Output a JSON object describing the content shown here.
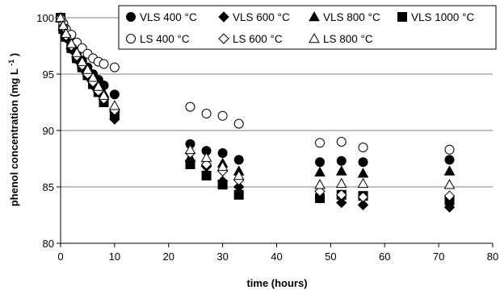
{
  "chart_data": {
    "type": "scatter",
    "title": "",
    "xlabel": "time (hours)",
    "ylabel": "phenol concentration (mg L",
    "ylabel_sup": "-1",
    "ylabel_close": ")",
    "xlim": [
      0,
      80
    ],
    "ylim": [
      80,
      100
    ],
    "xticks": [
      "0",
      "10",
      "20",
      "30",
      "40",
      "50",
      "60",
      "70",
      "80"
    ],
    "yticks": [
      "80",
      "85",
      "90",
      "95",
      "100"
    ],
    "grid": "horizontal",
    "legend_position": "top-right",
    "series": [
      {
        "name": "VLS 400 °C",
        "marker": "circle",
        "fill": "#000000",
        "x": [
          0,
          0.5,
          1,
          2,
          3,
          4,
          5,
          6,
          7,
          8,
          10,
          24,
          27,
          30,
          33,
          48,
          52,
          56,
          72
        ],
        "y": [
          100,
          99.3,
          98.6,
          97.8,
          97.0,
          96.2,
          95.6,
          95.0,
          94.5,
          94.0,
          93.2,
          88.8,
          88.2,
          88.0,
          87.4,
          87.2,
          87.3,
          87.2,
          87.4
        ]
      },
      {
        "name": "VLS 600 °C",
        "marker": "diamond",
        "fill": "#000000",
        "x": [
          0,
          0.5,
          1,
          2,
          3,
          4,
          5,
          6,
          7,
          8,
          10,
          24,
          27,
          30,
          33,
          48,
          52,
          56,
          72
        ],
        "y": [
          100,
          99.0,
          98.2,
          97.2,
          96.3,
          95.5,
          94.8,
          94.0,
          93.4,
          92.8,
          91.0,
          87.3,
          86.8,
          85.5,
          85.0,
          84.0,
          83.6,
          83.4,
          83.2
        ]
      },
      {
        "name": "VLS 800 °C",
        "marker": "triangle",
        "fill": "#000000",
        "x": [
          0,
          0.5,
          1,
          2,
          3,
          4,
          5,
          6,
          7,
          8,
          10,
          24,
          27,
          30,
          33,
          48,
          52,
          56,
          72
        ],
        "y": [
          100,
          99.2,
          98.5,
          97.6,
          96.8,
          96.0,
          95.3,
          94.6,
          94.0,
          93.3,
          92.0,
          87.6,
          87.2,
          87.1,
          86.4,
          86.3,
          86.4,
          86.2,
          86.4
        ]
      },
      {
        "name": "VLS 1000 °C",
        "marker": "square",
        "fill": "#000000",
        "x": [
          0,
          0.5,
          1,
          2,
          3,
          4,
          5,
          6,
          7,
          8,
          10,
          24,
          27,
          30,
          33,
          48,
          52,
          56,
          72
        ],
        "y": [
          100,
          99.0,
          98.3,
          97.3,
          96.4,
          95.6,
          94.9,
          94.1,
          93.4,
          92.5,
          91.4,
          87.0,
          86.0,
          85.2,
          84.3,
          84.0,
          84.3,
          84.2,
          83.8
        ]
      },
      {
        "name": "LS 400 °C",
        "marker": "circle",
        "fill": "#ffffff",
        "x": [
          0,
          0.5,
          1,
          2,
          3,
          4,
          5,
          6,
          7,
          8,
          10,
          24,
          27,
          30,
          33,
          48,
          52,
          56,
          72
        ],
        "y": [
          100,
          99.5,
          99.0,
          98.5,
          97.8,
          97.3,
          96.8,
          96.4,
          96.1,
          95.9,
          95.6,
          92.1,
          91.5,
          91.3,
          90.6,
          88.9,
          89.0,
          88.5,
          88.3
        ]
      },
      {
        "name": "LS 600 °C",
        "marker": "diamond",
        "fill": "#ffffff",
        "x": [
          0,
          0.5,
          1,
          2,
          3,
          4,
          5,
          6,
          7,
          8,
          10,
          24,
          27,
          30,
          33,
          48,
          52,
          56,
          72
        ],
        "y": [
          100,
          99.2,
          98.4,
          97.5,
          96.6,
          95.8,
          95.0,
          94.3,
          93.5,
          92.8,
          91.8,
          88.0,
          87.0,
          86.4,
          85.6,
          84.6,
          84.3,
          84.1,
          84.2
        ]
      },
      {
        "name": "LS 800 °C",
        "marker": "triangle",
        "fill": "#ffffff",
        "x": [
          0,
          0.5,
          1,
          2,
          3,
          4,
          5,
          6,
          7,
          8,
          10,
          24,
          27,
          30,
          33,
          48,
          52,
          56,
          72
        ],
        "y": [
          100,
          99.3,
          98.6,
          97.7,
          96.9,
          96.1,
          95.4,
          94.7,
          93.9,
          93.1,
          92.2,
          88.3,
          87.6,
          86.8,
          86.0,
          85.2,
          85.3,
          85.3,
          85.2
        ]
      }
    ]
  }
}
